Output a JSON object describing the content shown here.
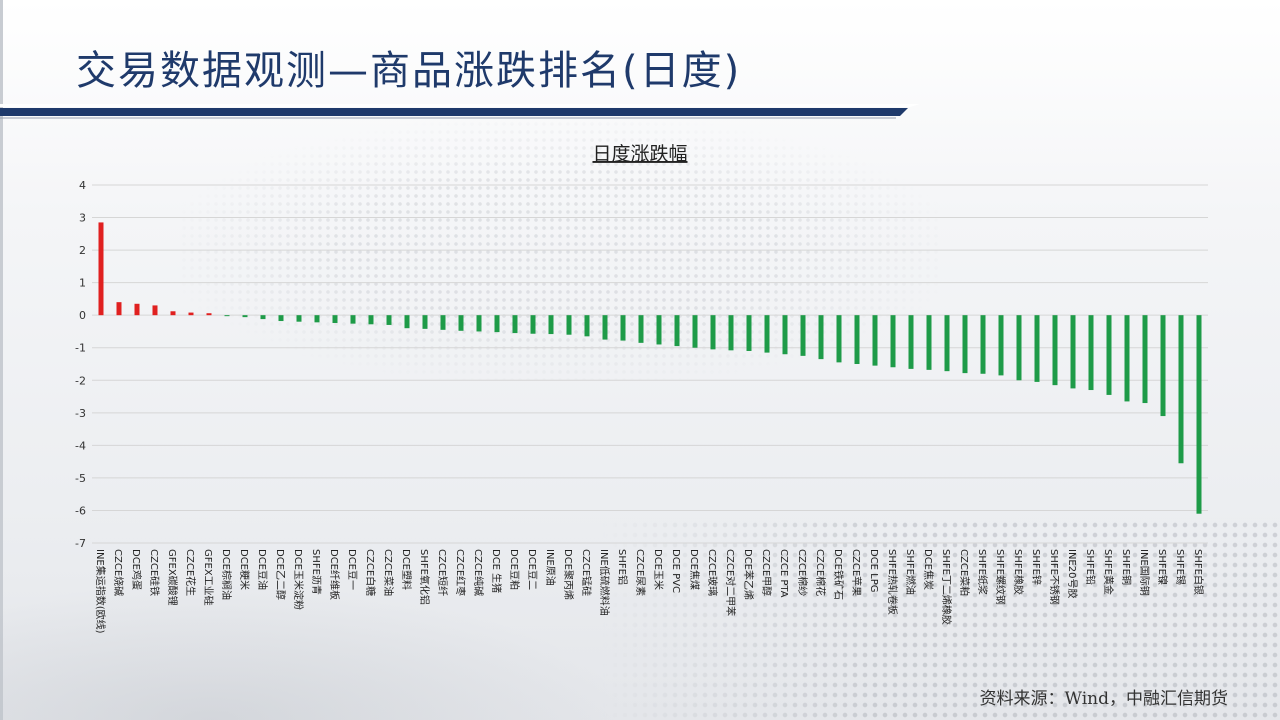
{
  "page": {
    "title": "交易数据观测—商品涨跌排名(日度)",
    "source": "资料来源：Wind，中融汇信期货"
  },
  "colors": {
    "title": "#1f3a6b",
    "rule_dark": "#1f3a6b",
    "positive": "#e02020",
    "negative": "#1e9b48",
    "grid": "#d6d6d6"
  },
  "chart_data": {
    "type": "bar",
    "title": "日度涨跌幅",
    "xlabel": "",
    "ylabel": "",
    "ylim": [
      -7,
      4
    ],
    "yticks": [
      4,
      3,
      2,
      1,
      0,
      -1,
      -2,
      -3,
      -4,
      -5,
      -6,
      -7
    ],
    "grid": true,
    "legend": "none",
    "categories": [
      "INE集运指数(欧线)",
      "CZCE烧碱",
      "DCE鸡蛋",
      "CZCE硅铁",
      "GFEX碳酸锂",
      "CZCE花生",
      "GFEX工业硅",
      "DCE棕榈油",
      "DCE粳米",
      "DCE豆油",
      "DCE乙二醇",
      "DCE玉米淀粉",
      "SHFE沥青",
      "DCE纤维板",
      "DCE豆一",
      "CZCE白糖",
      "CZCE菜油",
      "DCE塑料",
      "SHFE氧化铝",
      "CZCE短纤",
      "CZCE红枣",
      "CZCE纯碱",
      "DCE 生猪",
      "DCE豆粕",
      "DCE豆二",
      "INE原油",
      "DCE聚丙烯",
      "CZCE锰硅",
      "INE低硫燃料油",
      "SHFE铝",
      "CZCE尿素",
      "DCE玉米",
      "DCE PVC",
      "DCE焦煤",
      "CZCE玻璃",
      "CZCE对二甲苯",
      "DCE苯乙烯",
      "CZCE甲醇",
      "CZCE PTA",
      "CZCE棉纱",
      "CZCE棉花",
      "DCE铁矿石",
      "CZCE苹果",
      "DCE LPG",
      "SHFE热轧卷板",
      "SHFE燃油",
      "DCE焦炭",
      "SHFE丁二烯橡胶",
      "CZCE菜粕",
      "SHFE纸浆",
      "SHFE螺纹钢",
      "SHFE橡胶",
      "SHFE锌",
      "SHFE不锈钢",
      "INE20号胶",
      "SHFE铅",
      "SHFE黄金",
      "SHFE铜",
      "INE国际铜",
      "SHFE镍",
      "SHFE锡",
      "SHFE白银"
    ],
    "values": [
      2.85,
      0.4,
      0.35,
      0.3,
      0.12,
      0.08,
      0.06,
      -0.03,
      -0.06,
      -0.12,
      -0.18,
      -0.2,
      -0.22,
      -0.24,
      -0.26,
      -0.28,
      -0.3,
      -0.4,
      -0.42,
      -0.45,
      -0.48,
      -0.5,
      -0.52,
      -0.55,
      -0.57,
      -0.58,
      -0.6,
      -0.65,
      -0.75,
      -0.78,
      -0.85,
      -0.9,
      -0.95,
      -1.0,
      -1.05,
      -1.08,
      -1.1,
      -1.15,
      -1.2,
      -1.25,
      -1.35,
      -1.45,
      -1.5,
      -1.55,
      -1.6,
      -1.65,
      -1.68,
      -1.72,
      -1.78,
      -1.8,
      -1.85,
      -2.0,
      -2.05,
      -2.15,
      -2.25,
      -2.3,
      -2.45,
      -2.65,
      -2.7,
      -3.1,
      -4.55,
      -6.1
    ]
  }
}
